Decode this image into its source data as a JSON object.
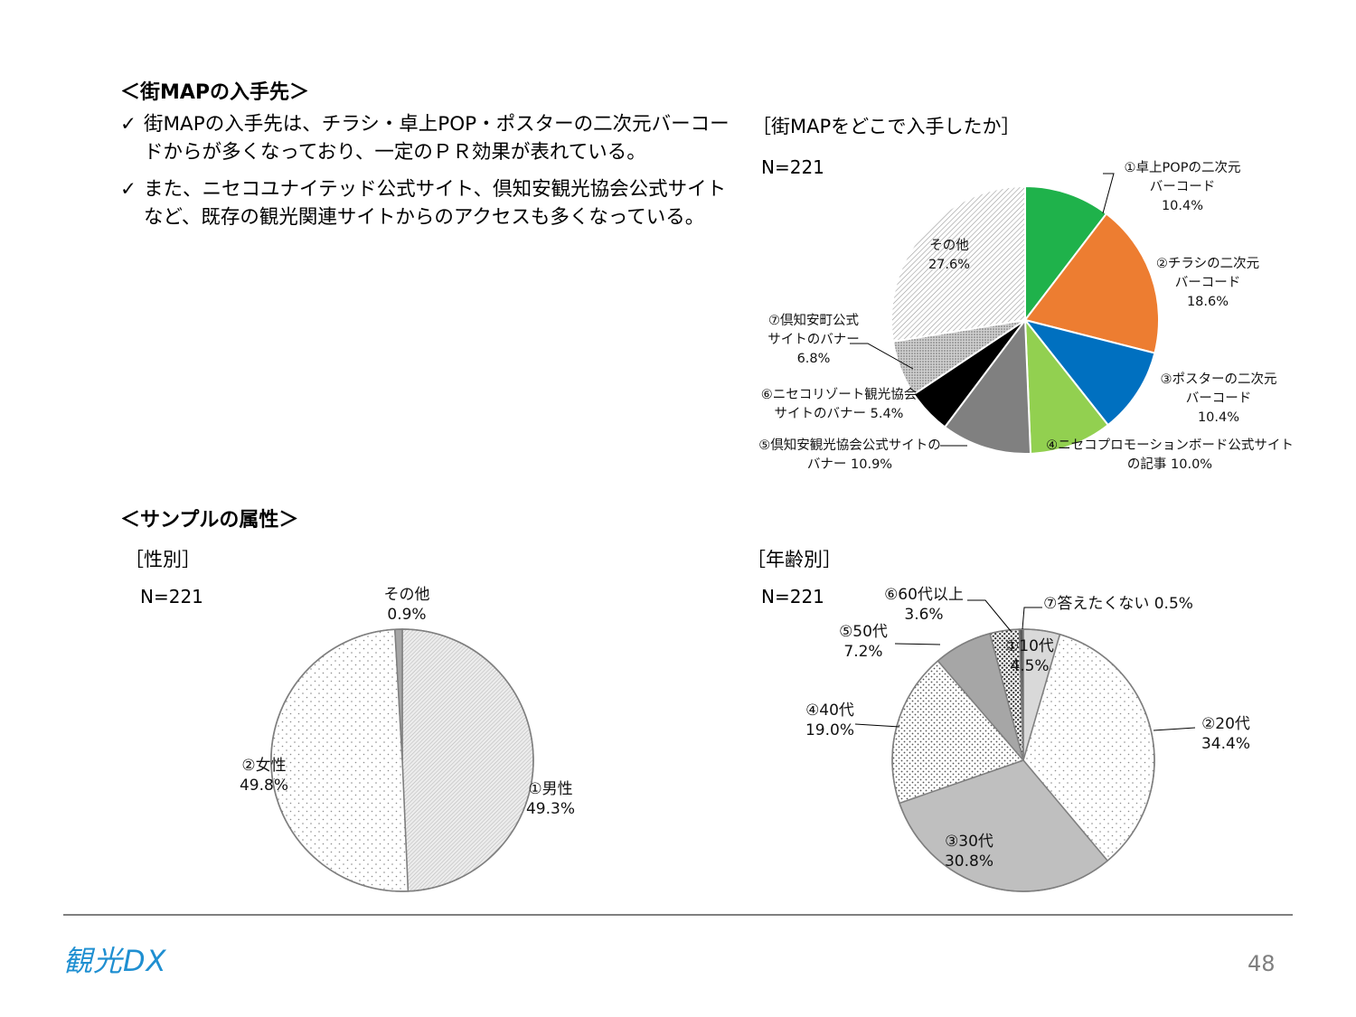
{
  "headings": {
    "acquisition": "＜街MAPの入手先＞",
    "sample": "＜サンプルの属性＞"
  },
  "bullets": [
    "街MAPの入手先は、チラシ・卓上POP・ポスターの二次元バーコードからが多くなっており、一定のＰＲ効果が表れている。",
    "また、ニセコユナイテッド公式サイト、倶知安観光協会公式サイトなど、既存の観光関連サイトからのアクセスも多くなっている。"
  ],
  "check_mark": "✓",
  "charts": {
    "map": {
      "title": "［街MAPをどこで入手したか］",
      "n": "N=221"
    },
    "gender": {
      "title": "［性別］",
      "n": "N=221"
    },
    "age": {
      "title": "［年齢別］",
      "n": "N=221"
    }
  },
  "footer": {
    "logo": "観光DX",
    "page_number": "48"
  },
  "chart_data": [
    {
      "type": "pie",
      "title": "［街MAPをどこで入手したか］",
      "start_angle_deg": 0,
      "slices": [
        {
          "label": [
            "①卓上POPの二次元",
            "バーコード",
            "10.4%"
          ],
          "value": 10.4,
          "fill": "#1fb24b",
          "color": "#1fb24b"
        },
        {
          "label": [
            "②チラシの二次元",
            "バーコード",
            "18.6%"
          ],
          "value": 18.6,
          "fill": "#ed7d31",
          "color": "#ed7d31"
        },
        {
          "label": [
            "③ポスターの二次元",
            "バーコード",
            "10.4%"
          ],
          "value": 10.4,
          "fill": "#0070c0",
          "color": "#0070c0"
        },
        {
          "label": [
            "④ニセコプロモーションボード公式サイト",
            "の記事  10.0%"
          ],
          "value": 10.0,
          "fill": "#92d050",
          "color": "#92d050"
        },
        {
          "label": [
            "⑤倶知安観光協会公式サイトの",
            "バナー  10.9%"
          ],
          "value": 10.9,
          "fill": "#808080",
          "color": "#808080"
        },
        {
          "label": [
            "⑥ニセコリゾート観光協会",
            "サイトのバナー  5.4%"
          ],
          "value": 5.4,
          "fill": "#000000",
          "color": "#000000"
        },
        {
          "label": [
            "⑦倶知安町公式",
            "サイトのバナー",
            "6.8%"
          ],
          "value": 6.8,
          "fill": "url(#pat-dots-dense)",
          "color": "#bfbfbf"
        },
        {
          "label": [
            "その他",
            "27.6%"
          ],
          "value": 27.6,
          "fill": "url(#pat-hatch)",
          "color": "#d9d9d9"
        }
      ]
    },
    {
      "type": "pie",
      "title": "［性別］",
      "start_angle_deg": 0,
      "slices": [
        {
          "label": [
            "①男性",
            "49.3%"
          ],
          "value": 49.3,
          "fill": "url(#pat-fine)",
          "color": "#d9d9d9"
        },
        {
          "label": [
            "②女性",
            "49.8%"
          ],
          "value": 49.8,
          "fill": "url(#pat-sparse)",
          "color": "#f2f2f2"
        },
        {
          "label": [
            "その他",
            "0.9%"
          ],
          "value": 0.9,
          "fill": "#a6a6a6",
          "color": "#a6a6a6"
        }
      ]
    },
    {
      "type": "pie",
      "title": "［年齢別］",
      "start_angle_deg": 0,
      "slices": [
        {
          "label": [
            "①10代",
            "4.5%"
          ],
          "value": 4.5,
          "fill": "#d9d9d9",
          "color": "#d9d9d9"
        },
        {
          "label": [
            "②20代",
            "34.4%"
          ],
          "value": 34.4,
          "fill": "url(#pat-sparse)",
          "color": "#f2f2f2"
        },
        {
          "label": [
            "③30代",
            "30.8%"
          ],
          "value": 30.8,
          "fill": "#bfbfbf",
          "color": "#bfbfbf"
        },
        {
          "label": [
            "④40代",
            "19.0%"
          ],
          "value": 19.0,
          "fill": "url(#pat-dots-mid)",
          "color": "#e6e6e6"
        },
        {
          "label": [
            "⑤50代",
            "7.2%"
          ],
          "value": 7.2,
          "fill": "#a6a6a6",
          "color": "#a6a6a6"
        },
        {
          "label": [
            "⑥60代以上",
            "3.6%"
          ],
          "value": 3.6,
          "fill": "url(#pat-dots-dark)",
          "color": "#d9d9d9"
        },
        {
          "label": [
            "⑦答えたくない 0.5%"
          ],
          "value": 0.5,
          "fill": "#595959",
          "color": "#595959"
        }
      ]
    }
  ]
}
